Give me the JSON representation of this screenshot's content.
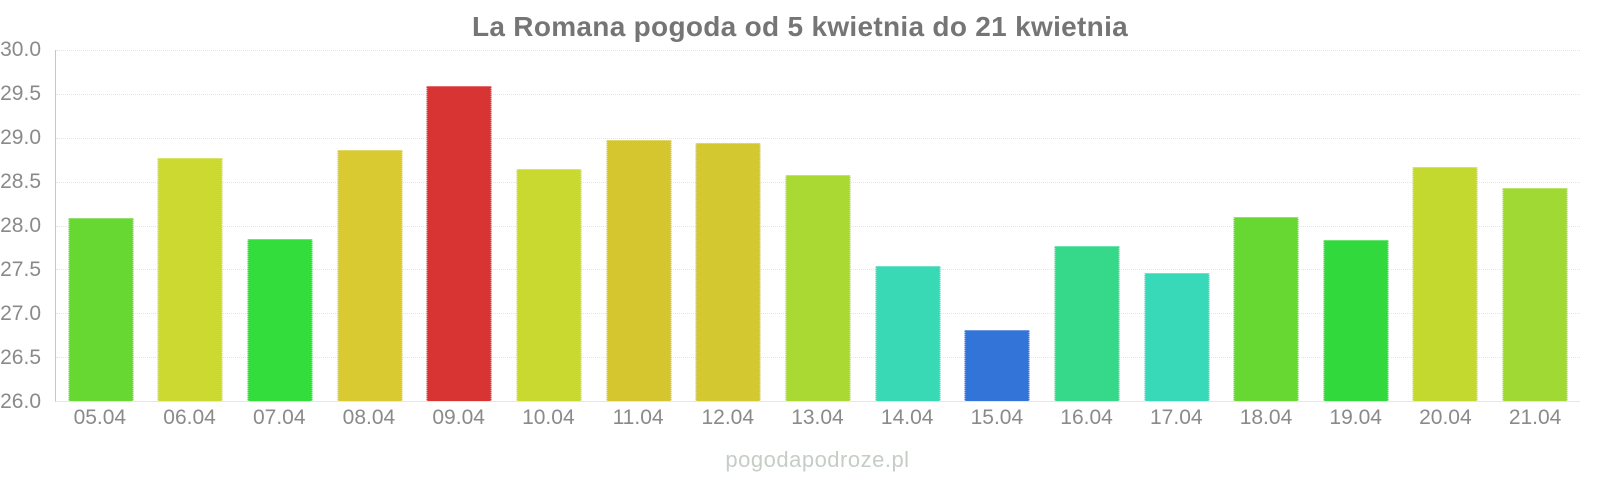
{
  "watermark": "pogodapodroze.pl",
  "colors": {
    "background": "#ffffff",
    "title_text": "#757575",
    "axis_text": "#8a8a8a",
    "gridline": "#e4e4e4",
    "axis_line": "#c6c6c6",
    "baseline": "#e6e6e6",
    "watermark_text": "#c6cdc6"
  },
  "chart_data": {
    "type": "bar",
    "title": "La Romana pogoda od 5 kwietnia do 21 kwietnia",
    "xlabel": "",
    "ylabel": "",
    "ylim": [
      26.0,
      30.0
    ],
    "ytick_step": 0.5,
    "grid": true,
    "legend": false,
    "categories": [
      "05.04",
      "06.04",
      "07.04",
      "08.04",
      "09.04",
      "10.04",
      "11.04",
      "12.04",
      "13.04",
      "14.04",
      "15.04",
      "16.04",
      "17.04",
      "18.04",
      "19.04",
      "20.04",
      "21.04"
    ],
    "values": [
      28.08,
      28.77,
      27.85,
      28.86,
      29.59,
      28.64,
      28.98,
      28.94,
      28.57,
      27.54,
      26.81,
      27.77,
      27.46,
      28.1,
      27.83,
      28.67,
      28.43
    ],
    "bar_colors": [
      "#67d832",
      "#ccd930",
      "#32dd3c",
      "#d8ca30",
      "#d93434",
      "#c9d930",
      "#d5c630",
      "#d3c830",
      "#a9d932",
      "#38d9b4",
      "#3374d9",
      "#36d98a",
      "#38d9b8",
      "#67d832",
      "#32d93c",
      "#c3d930",
      "#a1d934"
    ]
  }
}
